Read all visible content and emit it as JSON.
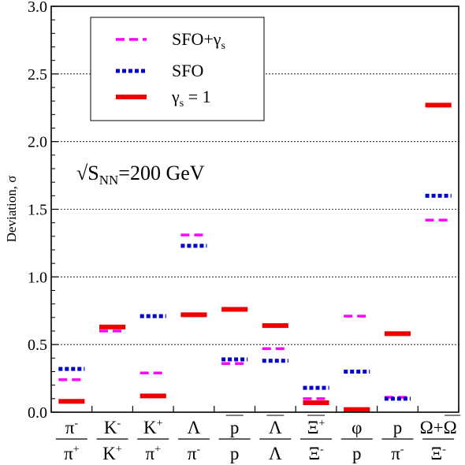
{
  "chart_data": {
    "type": "scatter",
    "title": "",
    "xlabel": "",
    "ylabel": "Deviation, σ",
    "ylim": [
      0,
      3.0
    ],
    "yticks": [
      "0.0",
      "0.5",
      "1.0",
      "1.5",
      "2.0",
      "2.5",
      "3.0"
    ],
    "grid": "horizontal dotted at 0.5 intervals",
    "legend_position": "top-left",
    "annotation": {
      "prefix": "√S",
      "sub": "NN",
      "suffix": "=200 GeV"
    },
    "categories": [
      {
        "num": "π",
        "num_sup": "-",
        "den": "π",
        "den_sup": "+"
      },
      {
        "num": "K",
        "num_sup": "-",
        "den": "K",
        "den_sup": "+"
      },
      {
        "num": "K",
        "num_sup": "+",
        "den": "π",
        "den_sup": "+"
      },
      {
        "num": "Λ",
        "num_sup": "",
        "den": "π",
        "den_sup": "-"
      },
      {
        "num": "p",
        "num_sup": "",
        "num_bar": true,
        "den": "p",
        "den_sup": ""
      },
      {
        "num": "Λ",
        "num_sup": "",
        "num_bar": true,
        "den": "Λ",
        "den_sup": ""
      },
      {
        "num": "Ξ",
        "num_sup": "+",
        "num_bar": true,
        "den": "Ξ",
        "den_sup": "-"
      },
      {
        "num": "φ",
        "num_sup": "",
        "den": "p",
        "den_sup": ""
      },
      {
        "num": "p",
        "num_sup": "",
        "den": "π",
        "den_sup": "-"
      },
      {
        "num": "Ω+Ω",
        "num_sup": "",
        "num_bar_partial": true,
        "den": "Ξ",
        "den_sup": "-"
      }
    ],
    "series": [
      {
        "name": "SFO+γs",
        "legend_main": "SFO+γ",
        "legend_sub": "s",
        "color": "#ff00ff",
        "style": "dashed",
        "values": [
          0.24,
          0.6,
          0.29,
          1.31,
          0.36,
          0.47,
          0.1,
          0.71,
          0.11,
          1.42
        ]
      },
      {
        "name": "SFO",
        "legend_main": "SFO",
        "legend_sub": "",
        "color": "#0000cc",
        "style": "dotted",
        "values": [
          0.32,
          0.63,
          0.71,
          1.23,
          0.39,
          0.38,
          0.18,
          0.3,
          0.1,
          1.6
        ]
      },
      {
        "name": "γs = 1",
        "legend_main": "γ",
        "legend_sub": "s",
        "legend_tail": " = 1",
        "color": "#ee0000",
        "style": "solid",
        "values": [
          0.08,
          0.63,
          0.12,
          0.72,
          0.76,
          0.64,
          0.07,
          0.02,
          0.58,
          2.27
        ]
      }
    ]
  }
}
